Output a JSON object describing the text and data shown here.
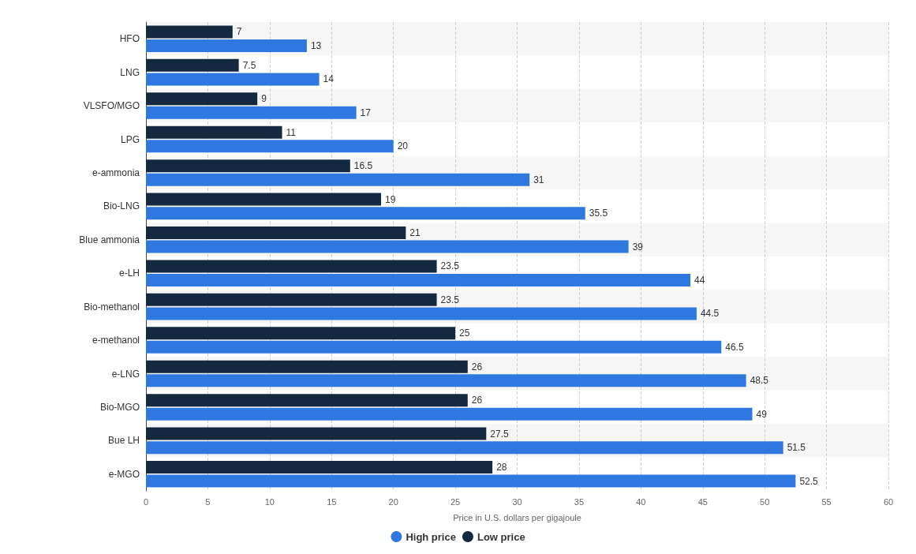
{
  "chart_data": {
    "type": "bar",
    "orientation": "horizontal",
    "categories": [
      "HFO",
      "LNG",
      "VLSFO/MGO",
      "LPG",
      "e-ammonia",
      "Bio-LNG",
      "Blue ammonia",
      "e-LH",
      "Bio-methanol",
      "e-methanol",
      "e-LNG",
      "Bio-MGO",
      "Bue LH",
      "e-MGO"
    ],
    "series": [
      {
        "name": "High price",
        "color": "#2f78e0",
        "values": [
          13,
          14,
          17,
          20,
          31,
          35.5,
          39,
          44,
          44.5,
          46.5,
          48.5,
          49,
          51.5,
          52.5
        ]
      },
      {
        "name": "Low price",
        "color": "#142840",
        "values": [
          7,
          7.5,
          9,
          11,
          16.5,
          19,
          21,
          23.5,
          23.5,
          25,
          26,
          26,
          27.5,
          28
        ]
      }
    ],
    "xlabel": "Price in U.S. dollars per gigajoule",
    "xlim": [
      0,
      60
    ],
    "xticks": [
      0,
      5,
      10,
      15,
      20,
      25,
      30,
      35,
      40,
      45,
      50,
      55,
      60
    ],
    "grid": "x",
    "legend": "bottom",
    "data_labels": true
  }
}
